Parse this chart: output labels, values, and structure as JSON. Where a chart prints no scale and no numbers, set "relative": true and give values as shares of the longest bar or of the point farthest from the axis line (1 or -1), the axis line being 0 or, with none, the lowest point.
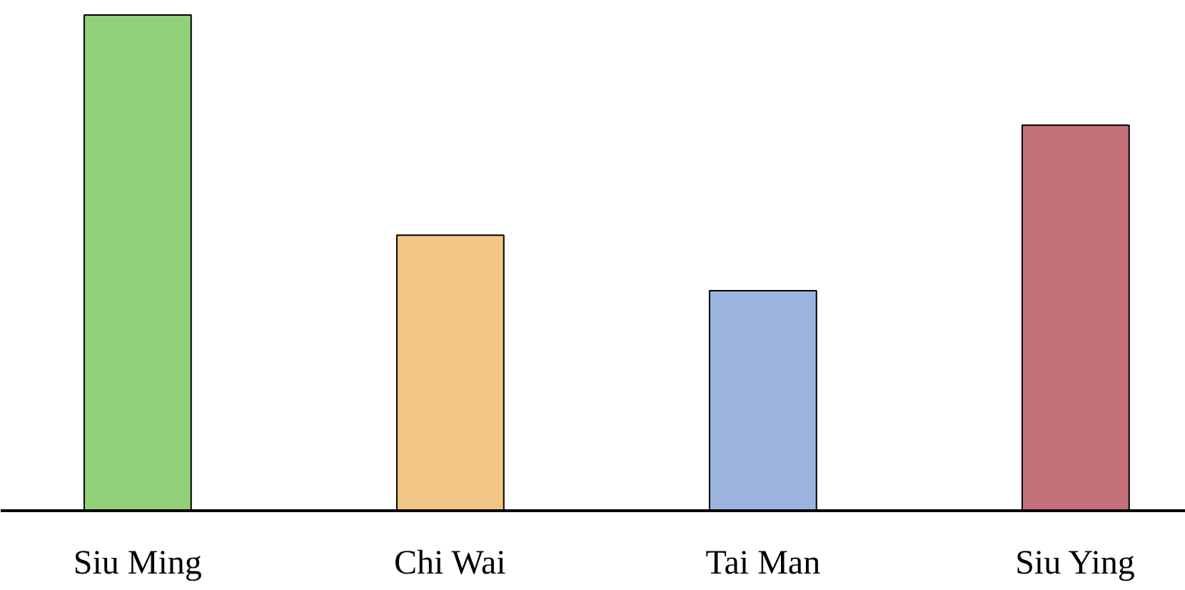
{
  "chart_data": {
    "type": "bar",
    "relative": true,
    "categories": [
      "Siu Ming",
      "Chi Wai",
      "Tai Man",
      "Siu Ying"
    ],
    "values": [
      1,
      0.556,
      0.444,
      0.778
    ],
    "colors": [
      "#92d07a",
      "#f2c584",
      "#9bb4df",
      "#c4707a"
    ],
    "grid": false
  }
}
